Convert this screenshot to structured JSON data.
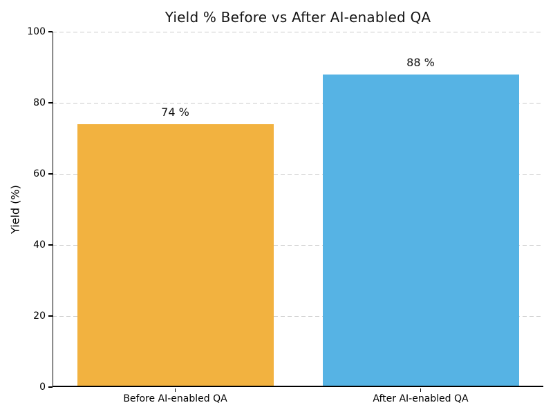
{
  "figure": {
    "background": "#ffffff",
    "text_color": "#000000"
  },
  "chart_data": {
    "type": "bar",
    "title": "Yield % Before vs After AI-enabled QA",
    "categories": [
      "Before AI-enabled QA",
      "After AI-enabled QA"
    ],
    "values": [
      74,
      88
    ],
    "value_labels": [
      "74 %",
      "88 %"
    ],
    "bar_colors": [
      "#F2B240",
      "#56B3E4"
    ],
    "xlabel": "",
    "ylabel": "Yield (%)",
    "ylim": [
      0,
      100
    ],
    "yticks": [
      0,
      20,
      40,
      60,
      80,
      100
    ],
    "grid": {
      "axis": "y",
      "style": "dashed",
      "color": "#cbcbcb"
    },
    "legend": "none"
  }
}
